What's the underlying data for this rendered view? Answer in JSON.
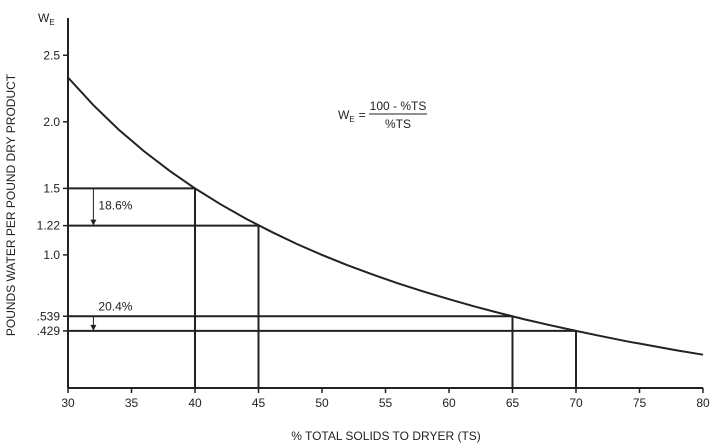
{
  "chart_data": {
    "type": "line",
    "title": "",
    "xlabel": "% TOTAL SOLIDS TO DRYER (TS)",
    "ylabel": "POUNDS WATER PER POUND DRY PRODUCT",
    "y_axis_symbol": {
      "main": "W",
      "sub": "E"
    },
    "xlim": [
      30,
      80
    ],
    "ylim": [
      0,
      2.78
    ],
    "x_ticks": [
      30,
      35,
      40,
      45,
      50,
      55,
      60,
      65,
      70,
      75,
      80
    ],
    "y_ticks": [
      {
        "value": 2.5,
        "label": "2.5"
      },
      {
        "value": 2.0,
        "label": "2.0"
      },
      {
        "value": 1.5,
        "label": "1.5"
      },
      {
        "value": 1.22,
        "label": "1.22"
      },
      {
        "value": 1.0,
        "label": "1.0"
      },
      {
        "value": 0.539,
        "label": ".539"
      },
      {
        "value": 0.429,
        "label": ".429"
      }
    ],
    "grid": false,
    "series": [
      {
        "x": [
          30,
          32,
          34,
          36,
          38,
          40,
          42,
          44,
          46,
          48,
          50,
          52,
          54,
          56,
          58,
          60,
          62,
          64,
          66,
          68,
          70,
          72,
          74,
          76,
          78,
          80
        ],
        "y": [
          2.333,
          2.125,
          1.941,
          1.778,
          1.632,
          1.5,
          1.381,
          1.273,
          1.174,
          1.083,
          1.0,
          0.923,
          0.852,
          0.786,
          0.724,
          0.667,
          0.613,
          0.563,
          0.515,
          0.471,
          0.429,
          0.389,
          0.351,
          0.316,
          0.282,
          0.25
        ]
      }
    ],
    "formula": {
      "lhs_main": "W",
      "lhs_sub": "E",
      "equals": "=",
      "numerator": "100 - %TS",
      "denominator": "%TS"
    },
    "guides": [
      {
        "x": 40,
        "y": 1.5
      },
      {
        "x": 45,
        "y": 1.22
      },
      {
        "x": 65,
        "y": 0.539
      },
      {
        "x": 70,
        "y": 0.429
      }
    ],
    "annotations": [
      {
        "text": "18.6%",
        "x": 32,
        "y_from": 1.5,
        "y_to": 1.22
      },
      {
        "text": "20.4%",
        "x": 32,
        "y_from": 0.539,
        "y_to": 0.429
      }
    ]
  }
}
